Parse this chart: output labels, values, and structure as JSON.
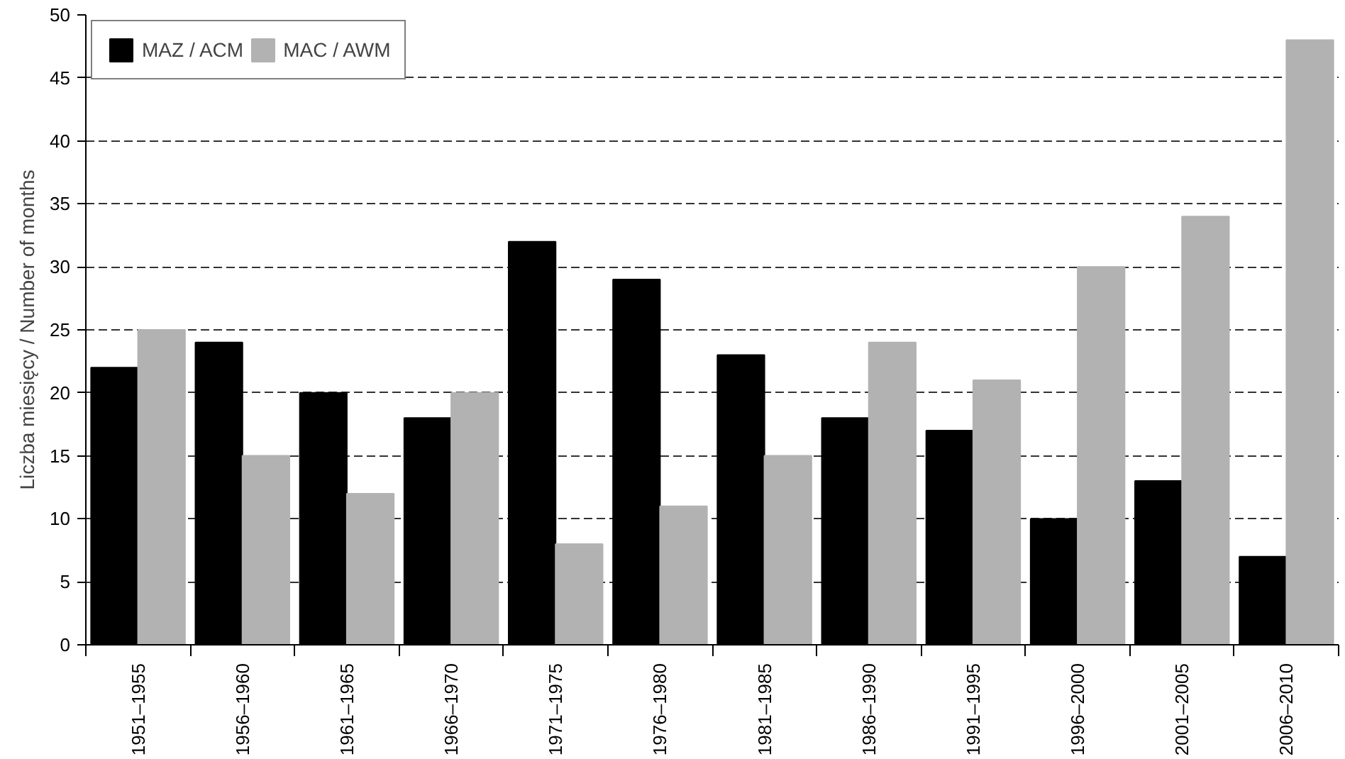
{
  "chart_data": {
    "type": "bar",
    "ylabel": "Liczba miesięcy / Number of months",
    "categories": [
      "1951–1955",
      "1956–1960",
      "1961–1965",
      "1966–1970",
      "1971–1975",
      "1976–1980",
      "1981–1985",
      "1986–1990",
      "1991–1995",
      "1996–2000",
      "2001–2005",
      "2006–2010"
    ],
    "series": [
      {
        "name": "MAZ / ACM",
        "color": "#000000",
        "values": [
          22,
          24,
          20,
          18,
          32,
          29,
          23,
          18,
          17,
          10,
          13,
          7
        ]
      },
      {
        "name": "MAC / AWM",
        "color": "#b2b2b2",
        "values": [
          25,
          15,
          12,
          20,
          8,
          11,
          15,
          24,
          21,
          30,
          34,
          48
        ]
      }
    ],
    "ylim": [
      0,
      50
    ],
    "yticks": [
      0,
      5,
      10,
      15,
      20,
      25,
      30,
      35,
      40,
      45,
      50
    ],
    "grid": "y",
    "legend": "top left"
  }
}
